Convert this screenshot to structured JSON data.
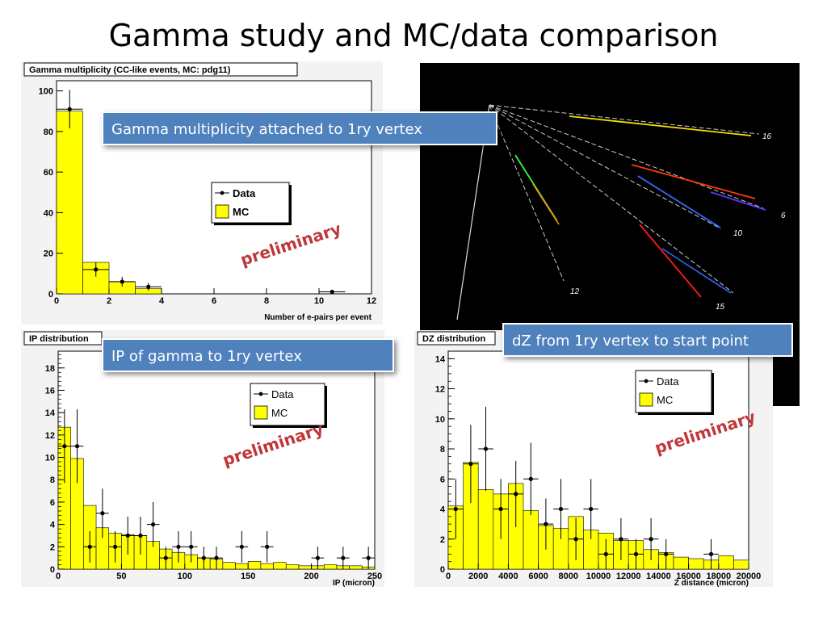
{
  "slide": {
    "title": "Gamma study and MC/data comparison",
    "watermark": "preliminary",
    "accent_color": "#c0373a",
    "callout_color": "#4f81bd"
  },
  "callouts": {
    "multiplicity": "Gamma multiplicity attached to 1ry vertex",
    "ip": "IP of gamma to 1ry vertex",
    "dz": "dZ from 1ry vertex to start point"
  },
  "event_display": {
    "track_labels": [
      "16",
      "6",
      "10",
      "12",
      "15"
    ]
  },
  "chart_data": [
    {
      "type": "bar",
      "title": "Gamma multiplicity (CC-like events, MC: pdg11)",
      "xlabel": "Number of e-pairs per event",
      "ylabel": "",
      "xlim": [
        0,
        12
      ],
      "ylim": [
        0,
        105
      ],
      "xticks": [
        0,
        2,
        4,
        6,
        8,
        10,
        12
      ],
      "yticks": [
        0,
        20,
        40,
        60,
        80,
        100
      ],
      "legend": [
        "Data",
        "MC"
      ],
      "legend_position": "right-middle",
      "series": [
        {
          "name": "MC",
          "kind": "histogram",
          "bin_edges": [
            0,
            1,
            2,
            3,
            4,
            5,
            6,
            7,
            8,
            9,
            10,
            11,
            12
          ],
          "values": [
            90,
            15.5,
            6,
            2.5,
            0,
            0,
            0,
            0,
            0,
            0,
            0,
            0
          ]
        },
        {
          "name": "Data",
          "kind": "points",
          "x": [
            0.5,
            1.5,
            2.5,
            3.5,
            10.5
          ],
          "y": [
            91,
            12,
            6,
            3.5,
            1
          ],
          "yerr": [
            9.5,
            3.5,
            2.4,
            1.9,
            1.0
          ]
        }
      ]
    },
    {
      "type": "bar",
      "title": "IP distribution",
      "xlabel": "IP (micron)",
      "ylabel": "",
      "xlim": [
        0,
        250
      ],
      "ylim": [
        0,
        19.5
      ],
      "xticks": [
        0,
        50,
        100,
        150,
        200,
        250
      ],
      "yticks": [
        0,
        2,
        4,
        6,
        8,
        10,
        12,
        14,
        16,
        18
      ],
      "legend": [
        "Data",
        "MC"
      ],
      "legend_position": "top-right",
      "series": [
        {
          "name": "MC",
          "kind": "histogram",
          "bin_edges": [
            0,
            10,
            20,
            30,
            40,
            50,
            60,
            70,
            80,
            90,
            100,
            110,
            120,
            130,
            140,
            150,
            160,
            170,
            180,
            190,
            200,
            210,
            220,
            230,
            240,
            250
          ],
          "values": [
            12.7,
            9.9,
            5.7,
            3.7,
            3.2,
            3.1,
            3.0,
            2.5,
            1.8,
            1.5,
            1.3,
            1.0,
            0.9,
            0.6,
            0.5,
            0.7,
            0.5,
            0.6,
            0.4,
            0.3,
            0.3,
            0.4,
            0.3,
            0.3,
            0.2
          ]
        },
        {
          "name": "Data",
          "kind": "points",
          "x": [
            5,
            15,
            25,
            35,
            45,
            55,
            65,
            75,
            85,
            95,
            105,
            115,
            125,
            145,
            165,
            205,
            225,
            245
          ],
          "y": [
            11,
            11,
            2,
            5,
            2,
            3,
            3,
            4,
            1,
            2,
            2,
            1,
            1,
            2,
            2,
            1,
            1,
            1
          ],
          "yerr": [
            3.3,
            3.3,
            1.4,
            2.2,
            1.4,
            1.7,
            1.7,
            2.0,
            1.0,
            1.4,
            1.4,
            1.0,
            1.0,
            1.4,
            1.4,
            1.0,
            1.0,
            1.0
          ]
        }
      ]
    },
    {
      "type": "bar",
      "title": "DZ distribution",
      "xlabel": "Z distance (micron)",
      "ylabel": "",
      "xlim": [
        0,
        20000
      ],
      "ylim": [
        0,
        14.5
      ],
      "xticks": [
        0,
        2000,
        4000,
        6000,
        8000,
        10000,
        12000,
        14000,
        16000,
        18000,
        20000
      ],
      "yticks": [
        0,
        2,
        4,
        6,
        8,
        10,
        12,
        14
      ],
      "legend": [
        "Data",
        "MC"
      ],
      "legend_position": "top-right",
      "series": [
        {
          "name": "MC",
          "kind": "histogram",
          "bin_edges": [
            0,
            1000,
            2000,
            3000,
            4000,
            5000,
            6000,
            7000,
            8000,
            9000,
            10000,
            11000,
            12000,
            13000,
            14000,
            15000,
            16000,
            17000,
            18000,
            19000,
            20000
          ],
          "values": [
            4.2,
            7.1,
            5.3,
            5.0,
            5.7,
            3.9,
            2.9,
            2.7,
            3.5,
            2.6,
            2.4,
            1.9,
            1.9,
            1.3,
            1.1,
            0.8,
            0.7,
            0.6,
            0.9,
            0.6
          ]
        },
        {
          "name": "Data",
          "kind": "points",
          "x": [
            500,
            1500,
            2500,
            3500,
            4500,
            5500,
            6500,
            7500,
            8500,
            9500,
            10500,
            11500,
            12500,
            13500,
            14500,
            17500
          ],
          "y": [
            4,
            7,
            8,
            4,
            5,
            6,
            3,
            4,
            2,
            4,
            1,
            2,
            1,
            2,
            1,
            1
          ],
          "yerr": [
            2.0,
            2.6,
            2.8,
            2.0,
            2.2,
            2.4,
            1.7,
            2.0,
            1.4,
            2.0,
            1.0,
            1.4,
            1.0,
            1.4,
            1.0,
            1.0
          ]
        }
      ]
    }
  ]
}
